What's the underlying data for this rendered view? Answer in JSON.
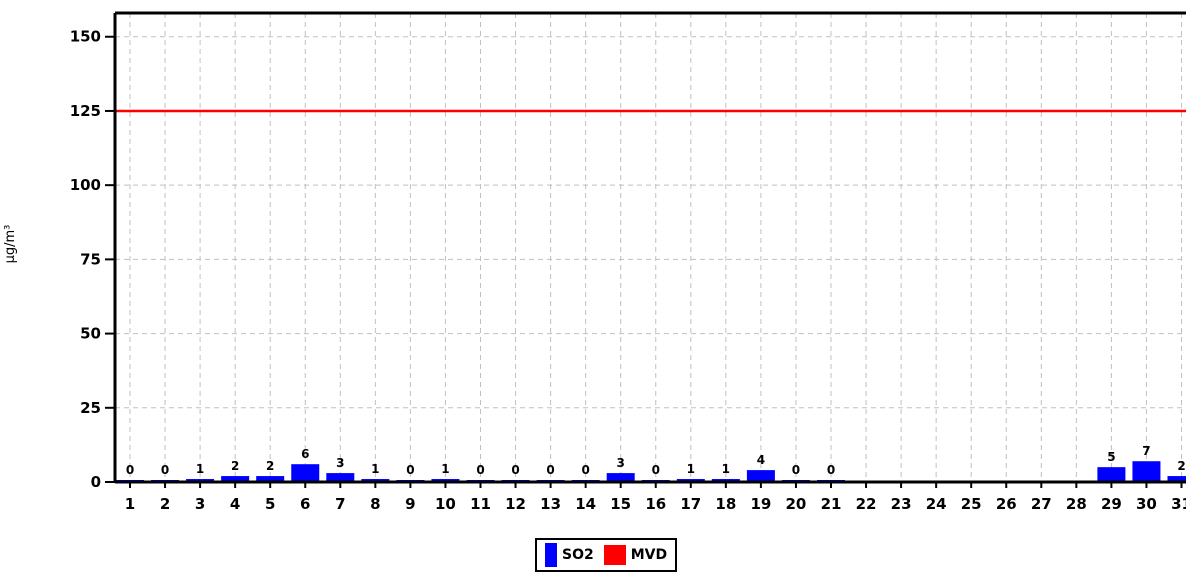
{
  "chart_data": {
    "type": "bar",
    "ylabel": "µg/m³",
    "ylim": [
      0,
      158
    ],
    "yticks": [
      0,
      25,
      50,
      75,
      100,
      125,
      150
    ],
    "grid": true,
    "categories": [
      "1",
      "2",
      "3",
      "4",
      "5",
      "6",
      "7",
      "8",
      "9",
      "10",
      "11",
      "12",
      "13",
      "14",
      "15",
      "16",
      "17",
      "18",
      "19",
      "20",
      "21",
      "22",
      "23",
      "24",
      "25",
      "26",
      "27",
      "28",
      "29",
      "30",
      "31"
    ],
    "series": [
      {
        "name": "SO2",
        "color": "#0000ff",
        "values": [
          0,
          0,
          1,
          2,
          2,
          6,
          3,
          1,
          0,
          1,
          0,
          0,
          0,
          0,
          3,
          0,
          1,
          1,
          4,
          0,
          0,
          null,
          null,
          null,
          null,
          null,
          null,
          null,
          5,
          7,
          2
        ],
        "labels": [
          "0",
          "0",
          "1",
          "2",
          "2",
          "6",
          "3",
          "1",
          "0",
          "1",
          "0",
          "0",
          "0",
          "0",
          "3",
          "0",
          "1",
          "1",
          "4",
          "0",
          "0",
          "",
          "",
          "",
          "",
          "",
          "",
          "",
          "5",
          "7",
          "2"
        ]
      }
    ],
    "reference_lines": [
      {
        "name": "MVD",
        "value": 125,
        "color": "#ff0000"
      }
    ],
    "legend": {
      "position": "bottom-center",
      "items": [
        {
          "label": "SO2",
          "color": "#0000ff"
        },
        {
          "label": "MVD",
          "color": "#ff0000"
        }
      ]
    }
  }
}
